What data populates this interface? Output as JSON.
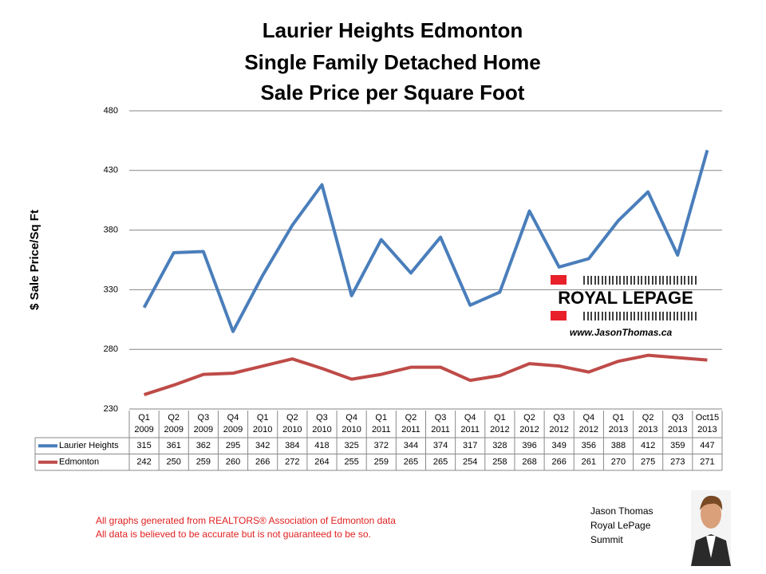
{
  "chart_data": {
    "type": "line",
    "title": [
      "Laurier Heights Edmonton",
      "Single Family Detached Home",
      "Sale Price per Square Foot"
    ],
    "y_label": "$ Sale Price/Sq Ft",
    "categories": [
      "Q1 2009",
      "Q2 2009",
      "Q3 2009",
      "Q4 2009",
      "Q1 2010",
      "Q2 2010",
      "Q3 2010",
      "Q4 2010",
      "Q1 2011",
      "Q2 2011",
      "Q3 2011",
      "Q4 2011",
      "Q1 2012",
      "Q2 2012",
      "Q3 2012",
      "Q4 2012",
      "Q1 2013",
      "Q2 2013",
      "Q3 2013",
      "Oct15 2013"
    ],
    "series": [
      {
        "name": "Laurier Heights",
        "color": "#4a7ebb",
        "values": [
          315,
          361,
          362,
          295,
          342,
          384,
          418,
          325,
          372,
          344,
          374,
          317,
          328,
          396,
          349,
          356,
          388,
          412,
          359,
          447
        ]
      },
      {
        "name": "Edmonton",
        "color": "#be4b48",
        "values": [
          242,
          250,
          259,
          260,
          266,
          272,
          264,
          255,
          259,
          265,
          265,
          254,
          258,
          268,
          266,
          261,
          270,
          275,
          273,
          271
        ]
      }
    ],
    "ylim": [
      230,
      480
    ],
    "yticks": [
      230,
      280,
      330,
      380,
      430,
      480
    ],
    "grid": true
  },
  "logo": {
    "brand": "ROYAL LEPAGE",
    "url": "www.JasonThomas.ca"
  },
  "footer": {
    "notes": [
      "All graphs generated from REALTORS® Association of Edmonton data",
      "All data is believed to be accurate but is not guaranteed to be so."
    ],
    "signature": [
      "Jason Thomas",
      "Royal LePage",
      "Summit"
    ]
  }
}
